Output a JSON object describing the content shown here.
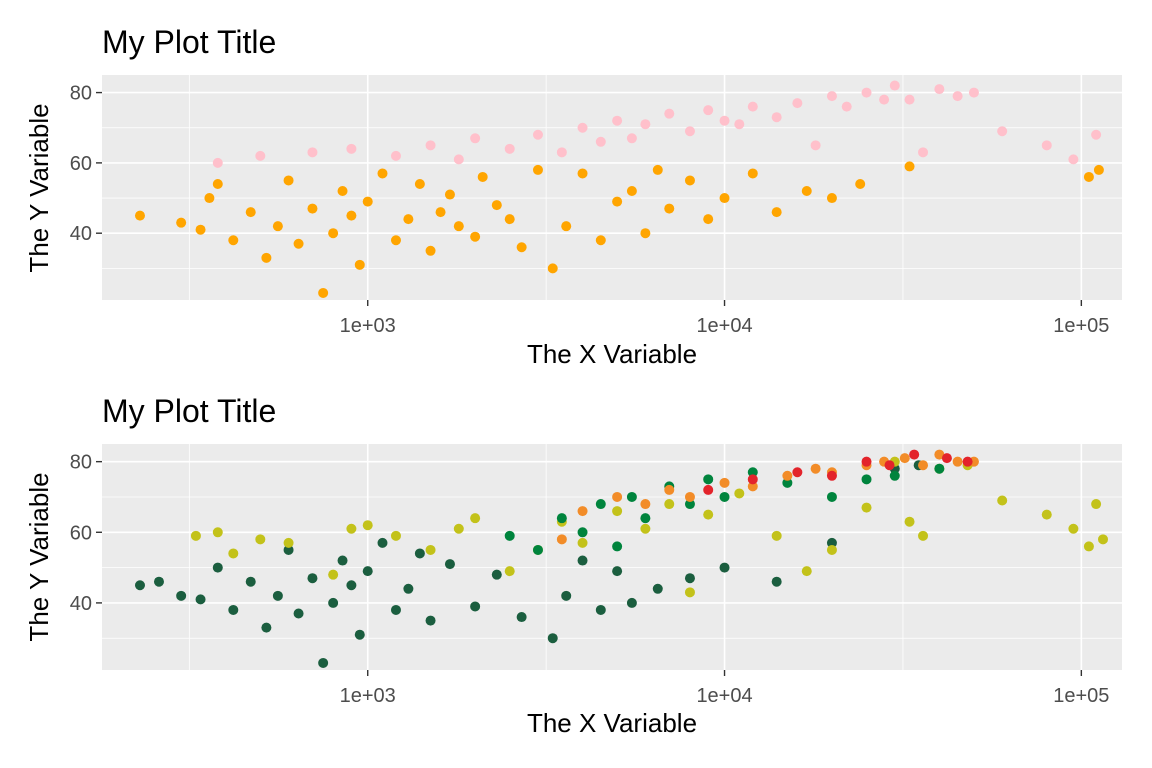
{
  "chart_data": [
    {
      "type": "scatter",
      "title": "My Plot Title",
      "xlabel": "The X Variable",
      "ylabel": "The Y Variable",
      "x_scale": "log10",
      "xlim": [
        180,
        130000
      ],
      "ylim": [
        21,
        85
      ],
      "x_ticks": [
        1000,
        10000,
        100000
      ],
      "x_tick_labels": [
        "1e+03",
        "1e+04",
        "1e+05"
      ],
      "y_ticks": [
        40,
        60,
        80
      ],
      "y_tick_labels": [
        "40",
        "60",
        "80"
      ],
      "grid": true,
      "legend": "none",
      "series": [
        {
          "name": "lower group",
          "color": "#FFA500",
          "points": [
            [
              230,
              45
            ],
            [
              300,
              43
            ],
            [
              340,
              41
            ],
            [
              360,
              50
            ],
            [
              380,
              54
            ],
            [
              420,
              38
            ],
            [
              470,
              46
            ],
            [
              520,
              33
            ],
            [
              560,
              42
            ],
            [
              600,
              55
            ],
            [
              640,
              37
            ],
            [
              700,
              47
            ],
            [
              750,
              23
            ],
            [
              800,
              40
            ],
            [
              850,
              52
            ],
            [
              900,
              45
            ],
            [
              950,
              31
            ],
            [
              1000,
              49
            ],
            [
              1100,
              57
            ],
            [
              1200,
              38
            ],
            [
              1300,
              44
            ],
            [
              1400,
              54
            ],
            [
              1500,
              35
            ],
            [
              1600,
              46
            ],
            [
              1700,
              51
            ],
            [
              1800,
              42
            ],
            [
              2000,
              39
            ],
            [
              2100,
              56
            ],
            [
              2300,
              48
            ],
            [
              2500,
              44
            ],
            [
              2700,
              36
            ],
            [
              3000,
              58
            ],
            [
              3300,
              30
            ],
            [
              3600,
              42
            ],
            [
              4000,
              57
            ],
            [
              4500,
              38
            ],
            [
              5000,
              49
            ],
            [
              5500,
              52
            ],
            [
              6000,
              40
            ],
            [
              6500,
              58
            ],
            [
              7000,
              47
            ],
            [
              8000,
              55
            ],
            [
              9000,
              44
            ],
            [
              10000,
              50
            ],
            [
              12000,
              57
            ],
            [
              14000,
              46
            ],
            [
              17000,
              52
            ],
            [
              20000,
              50
            ],
            [
              24000,
              54
            ],
            [
              33000,
              59
            ],
            [
              105000,
              56
            ],
            [
              112000,
              58
            ]
          ]
        },
        {
          "name": "upper group",
          "color": "#FFC0CB",
          "points": [
            [
              380,
              60
            ],
            [
              500,
              62
            ],
            [
              700,
              63
            ],
            [
              900,
              64
            ],
            [
              1200,
              62
            ],
            [
              1500,
              65
            ],
            [
              1800,
              61
            ],
            [
              2000,
              67
            ],
            [
              2500,
              64
            ],
            [
              3000,
              68
            ],
            [
              3500,
              63
            ],
            [
              4000,
              70
            ],
            [
              4500,
              66
            ],
            [
              5000,
              72
            ],
            [
              5500,
              67
            ],
            [
              6000,
              71
            ],
            [
              7000,
              74
            ],
            [
              8000,
              69
            ],
            [
              9000,
              75
            ],
            [
              10000,
              72
            ],
            [
              11000,
              71
            ],
            [
              12000,
              76
            ],
            [
              14000,
              73
            ],
            [
              16000,
              77
            ],
            [
              18000,
              65
            ],
            [
              20000,
              79
            ],
            [
              22000,
              76
            ],
            [
              25000,
              80
            ],
            [
              28000,
              78
            ],
            [
              30000,
              82
            ],
            [
              33000,
              78
            ],
            [
              36000,
              63
            ],
            [
              40000,
              81
            ],
            [
              45000,
              79
            ],
            [
              50000,
              80
            ],
            [
              60000,
              69
            ],
            [
              80000,
              65
            ],
            [
              95000,
              61
            ],
            [
              110000,
              68
            ]
          ]
        }
      ]
    },
    {
      "type": "scatter",
      "title": "My Plot Title",
      "xlabel": "The X Variable",
      "ylabel": "The Y Variable",
      "x_scale": "log10",
      "xlim": [
        180,
        130000
      ],
      "ylim": [
        21,
        85
      ],
      "x_ticks": [
        1000,
        10000,
        100000
      ],
      "x_tick_labels": [
        "1e+03",
        "1e+04",
        "1e+05"
      ],
      "y_ticks": [
        40,
        60,
        80
      ],
      "y_tick_labels": [
        "40",
        "60",
        "80"
      ],
      "grid": true,
      "legend": "none",
      "series": [
        {
          "name": "dark green",
          "color": "#1B5E3F",
          "points": [
            [
              230,
              45
            ],
            [
              260,
              46
            ],
            [
              300,
              42
            ],
            [
              340,
              41
            ],
            [
              380,
              50
            ],
            [
              420,
              38
            ],
            [
              470,
              46
            ],
            [
              520,
              33
            ],
            [
              560,
              42
            ],
            [
              600,
              55
            ],
            [
              640,
              37
            ],
            [
              700,
              47
            ],
            [
              750,
              23
            ],
            [
              800,
              40
            ],
            [
              850,
              52
            ],
            [
              900,
              45
            ],
            [
              950,
              31
            ],
            [
              1000,
              49
            ],
            [
              1100,
              57
            ],
            [
              1200,
              38
            ],
            [
              1300,
              44
            ],
            [
              1400,
              54
            ],
            [
              1500,
              35
            ],
            [
              1700,
              51
            ],
            [
              2000,
              39
            ],
            [
              2300,
              48
            ],
            [
              2700,
              36
            ],
            [
              3300,
              30
            ],
            [
              3600,
              42
            ],
            [
              4000,
              52
            ],
            [
              4500,
              38
            ],
            [
              5000,
              49
            ],
            [
              5500,
              40
            ],
            [
              6500,
              44
            ],
            [
              8000,
              47
            ],
            [
              10000,
              50
            ],
            [
              14000,
              46
            ],
            [
              20000,
              57
            ],
            [
              30000,
              78
            ],
            [
              35000,
              79
            ]
          ]
        },
        {
          "name": "yellow-green",
          "color": "#C3C21A",
          "points": [
            [
              330,
              59
            ],
            [
              380,
              60
            ],
            [
              420,
              54
            ],
            [
              500,
              58
            ],
            [
              600,
              57
            ],
            [
              800,
              48
            ],
            [
              900,
              61
            ],
            [
              1000,
              62
            ],
            [
              1200,
              59
            ],
            [
              1500,
              55
            ],
            [
              1800,
              61
            ],
            [
              2000,
              64
            ],
            [
              2500,
              49
            ],
            [
              3000,
              55
            ],
            [
              3500,
              63
            ],
            [
              4000,
              57
            ],
            [
              5000,
              66
            ],
            [
              6000,
              61
            ],
            [
              7000,
              68
            ],
            [
              8000,
              43
            ],
            [
              9000,
              65
            ],
            [
              11000,
              71
            ],
            [
              14000,
              59
            ],
            [
              17000,
              49
            ],
            [
              20000,
              55
            ],
            [
              25000,
              67
            ],
            [
              30000,
              80
            ],
            [
              33000,
              63
            ],
            [
              36000,
              59
            ],
            [
              40000,
              78
            ],
            [
              48000,
              79
            ],
            [
              60000,
              69
            ],
            [
              80000,
              65
            ],
            [
              95000,
              61
            ],
            [
              105000,
              56
            ],
            [
              110000,
              68
            ],
            [
              115000,
              58
            ]
          ]
        },
        {
          "name": "bright green",
          "color": "#00843D",
          "points": [
            [
              2500,
              59
            ],
            [
              3000,
              55
            ],
            [
              3500,
              64
            ],
            [
              4000,
              60
            ],
            [
              4500,
              68
            ],
            [
              5000,
              56
            ],
            [
              5500,
              70
            ],
            [
              6000,
              64
            ],
            [
              7000,
              73
            ],
            [
              8000,
              68
            ],
            [
              9000,
              75
            ],
            [
              10000,
              70
            ],
            [
              12000,
              77
            ],
            [
              15000,
              74
            ],
            [
              20000,
              70
            ],
            [
              25000,
              75
            ],
            [
              30000,
              76
            ],
            [
              40000,
              78
            ]
          ]
        },
        {
          "name": "orange",
          "color": "#F28C28",
          "points": [
            [
              3500,
              58
            ],
            [
              4000,
              66
            ],
            [
              5000,
              70
            ],
            [
              6000,
              68
            ],
            [
              7000,
              72
            ],
            [
              8000,
              70
            ],
            [
              10000,
              74
            ],
            [
              12000,
              73
            ],
            [
              15000,
              76
            ],
            [
              18000,
              78
            ],
            [
              20000,
              77
            ],
            [
              25000,
              79
            ],
            [
              28000,
              80
            ],
            [
              32000,
              81
            ],
            [
              36000,
              79
            ],
            [
              40000,
              82
            ],
            [
              45000,
              80
            ],
            [
              50000,
              80
            ]
          ]
        },
        {
          "name": "red",
          "color": "#E3242B",
          "points": [
            [
              9000,
              72
            ],
            [
              12000,
              75
            ],
            [
              16000,
              77
            ],
            [
              20000,
              76
            ],
            [
              25000,
              80
            ],
            [
              29000,
              79
            ],
            [
              34000,
              82
            ],
            [
              42000,
              81
            ],
            [
              48000,
              80
            ]
          ]
        }
      ]
    }
  ]
}
